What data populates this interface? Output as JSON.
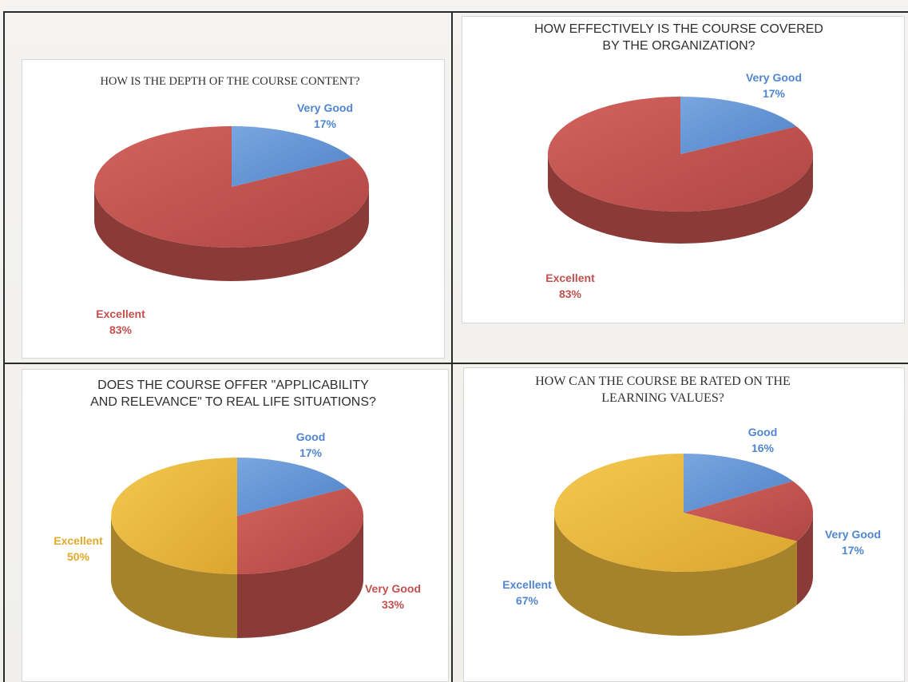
{
  "colors": {
    "blue": "#5b8fd3",
    "red": "#c0504d",
    "gold": "#e7b43a"
  },
  "chart_data": [
    {
      "type": "pie",
      "title": "HOW IS THE DEPTH OF THE COURSE CONTENT?",
      "title_lines": [
        "HOW IS THE DEPTH OF THE COURSE CONTENT?"
      ],
      "slices": [
        {
          "name": "Very Good",
          "value": 17,
          "label": "17%",
          "color": "#5b8fd3"
        },
        {
          "name": "Excellent",
          "value": 83,
          "label": "83%",
          "color": "#c0504d"
        }
      ]
    },
    {
      "type": "pie",
      "title": "HOW EFFECTIVELY IS THE COURSE COVERED BY THE ORGANIZATION?",
      "title_lines": [
        "HOW EFFECTIVELY IS THE COURSE COVERED",
        "BY THE ORGANIZATION?"
      ],
      "slices": [
        {
          "name": "Very Good",
          "value": 17,
          "label": "17%",
          "color": "#5b8fd3"
        },
        {
          "name": "Excellent",
          "value": 83,
          "label": "83%",
          "color": "#c0504d"
        }
      ]
    },
    {
      "type": "pie",
      "title": "DOES THE COURSE OFFER \"APPLICABILITY AND RELEVANCE\" TO REAL LIFE SITUATIONS?",
      "title_lines": [
        "DOES THE COURSE OFFER \"APPLICABILITY",
        "AND RELEVANCE\" TO REAL LIFE SITUATIONS?"
      ],
      "slices": [
        {
          "name": "Good",
          "value": 17,
          "label": "17%",
          "color": "#5b8fd3"
        },
        {
          "name": "Very Good",
          "value": 33,
          "label": "33%",
          "color": "#c0504d"
        },
        {
          "name": "Excellent",
          "value": 50,
          "label": "50%",
          "color": "#e7b43a"
        }
      ]
    },
    {
      "type": "pie",
      "title": "HOW CAN THE COURSE BE RATED ON THE LEARNING VALUES?",
      "title_lines": [
        "HOW CAN THE COURSE BE RATED ON THE",
        "LEARNING VALUES?"
      ],
      "slices": [
        {
          "name": "Good",
          "value": 16,
          "label": "16%",
          "color": "#5b8fd3"
        },
        {
          "name": "Very Good",
          "value": 17,
          "label": "17%",
          "color": "#c0504d"
        },
        {
          "name": "Excellent",
          "value": 67,
          "label": "67%",
          "color": "#e7b43a"
        }
      ]
    }
  ]
}
